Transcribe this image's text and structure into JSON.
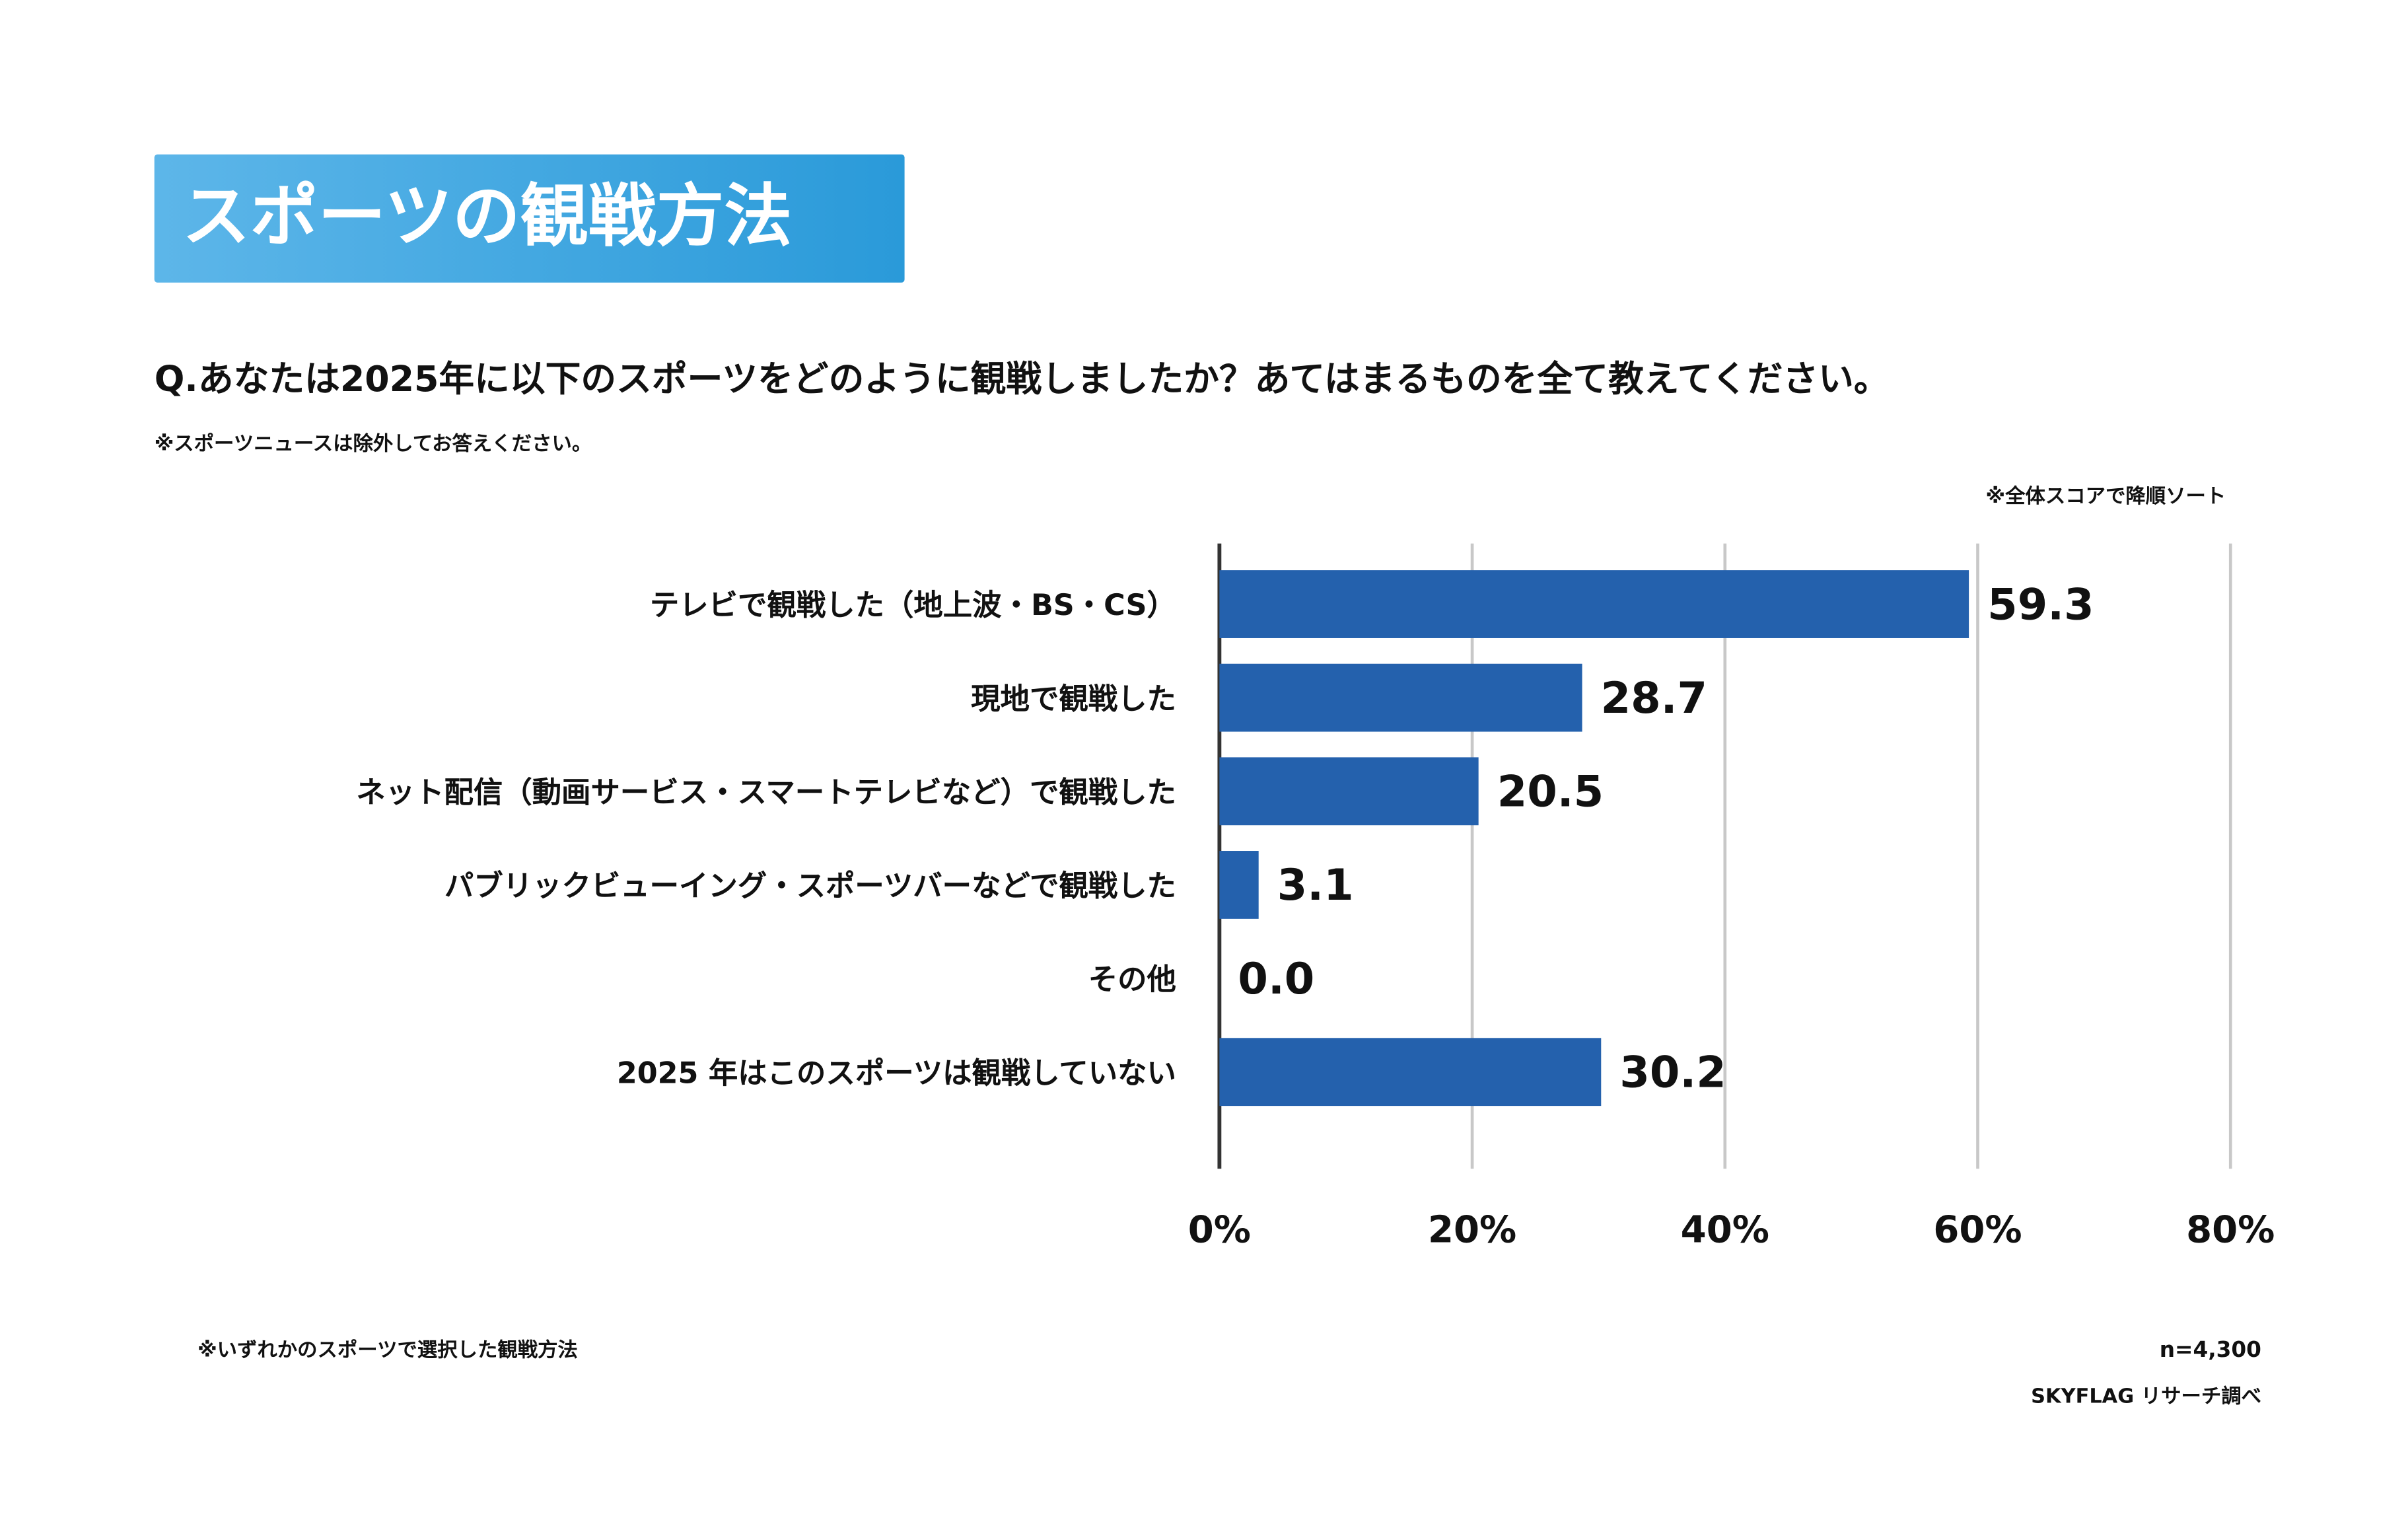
{
  "chart_data": {
    "type": "bar",
    "orientation": "horizontal",
    "title": "スポーツの観戦方法",
    "subtitle": "Q.あなたは2025年に以下のスポーツをどのように観戦しましたか？あてはまるものを全て教えてください。",
    "note": "※スポーツニュースは除外してお答えください。",
    "sort_note": "※全体スコアで降順ソート",
    "footnote": "※いずれかのスポーツで選択した観戦方法",
    "sample_size": "n=4,300",
    "source": "SKYFLAG リサーチ調べ",
    "categories": [
      "テレビで観戦した（地上波・BS・CS）",
      "現地で観戦した",
      "ネット配信（動画サービス・スマートテレビなど）で観戦した",
      "パブリックビューイング・スポーツバーなどで観戦した",
      "その他",
      "2025 年はこのスポーツは観戦していない"
    ],
    "values": [
      59.3,
      28.7,
      20.5,
      3.1,
      0.0,
      30.2
    ],
    "value_labels": [
      "59.3",
      "28.7",
      "20.5",
      "3.1",
      "0.0",
      "30.2"
    ],
    "color": "#2461ad",
    "xlim": [
      0,
      80
    ],
    "xticks": [
      {
        "value": 0,
        "label": "0%"
      },
      {
        "value": 20,
        "label": "20%"
      },
      {
        "value": 40,
        "label": "40%"
      },
      {
        "value": 60,
        "label": "60%"
      },
      {
        "value": 80,
        "label": "80%"
      }
    ],
    "grid": true
  }
}
